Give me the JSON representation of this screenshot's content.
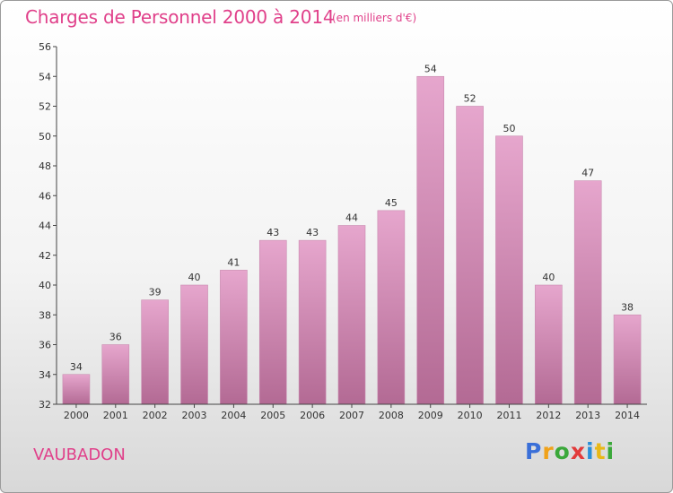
{
  "header": {
    "title": "Charges de Personnel 2000 à 2014",
    "subtitle": "(en milliers d'€)"
  },
  "footer": {
    "town": "VAUBADON",
    "logo": "Proxiti",
    "logo_letters": [
      "P",
      "r",
      "o",
      "x",
      "i",
      "t",
      "i"
    ],
    "logo_colors": [
      "#3a6fd8",
      "#f0a21a",
      "#3aa83a",
      "#e23a3a",
      "#2a8fd8",
      "#e8b818",
      "#3aa83a"
    ]
  },
  "chart_data": {
    "type": "bar",
    "title": "Charges de Personnel 2000 à 2014",
    "subtitle": "(en milliers d'€)",
    "categories": [
      "2000",
      "2001",
      "2002",
      "2003",
      "2004",
      "2005",
      "2006",
      "2007",
      "2008",
      "2009",
      "2010",
      "2011",
      "2012",
      "2013",
      "2014"
    ],
    "values": [
      34,
      36,
      39,
      40,
      41,
      43,
      43,
      44,
      45,
      54,
      52,
      50,
      40,
      47,
      38
    ],
    "ylim": [
      32,
      56
    ],
    "yticks": [
      32,
      34,
      36,
      38,
      40,
      42,
      44,
      46,
      48,
      50,
      52,
      54,
      56
    ],
    "grid": false,
    "bar_color_top": "#e6a6cd",
    "bar_color_bottom": "#b36a94",
    "label_color": "#e0408a"
  }
}
